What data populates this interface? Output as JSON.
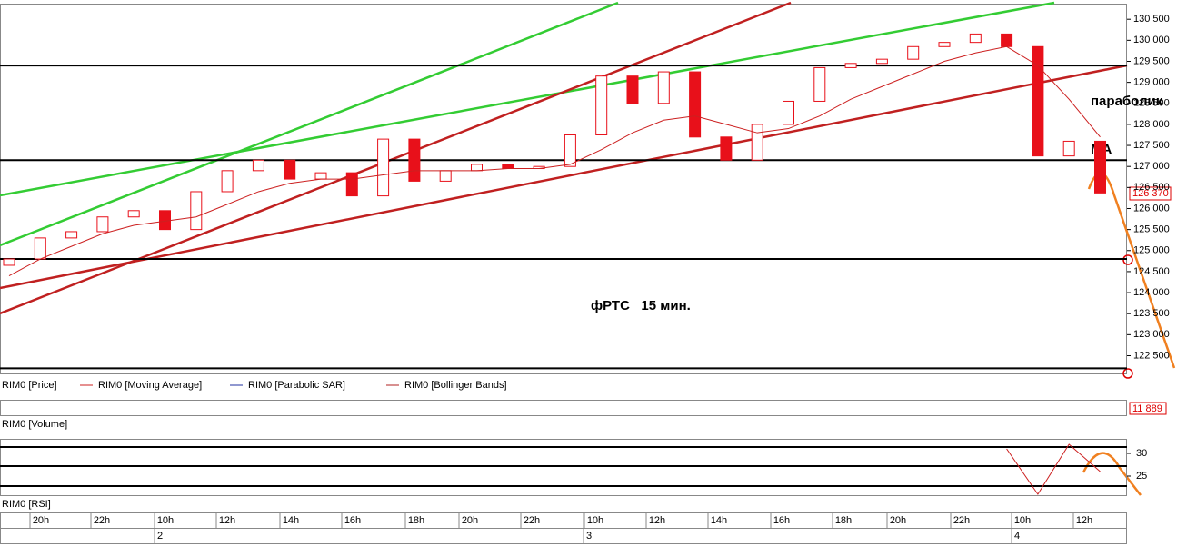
{
  "chart_data": [
    {
      "type": "candlestick",
      "legend": [
        {
          "name": "RIM0 [Price]",
          "color": "#cc2020"
        },
        {
          "name": "RIM0 [Moving Average]",
          "color": "#cc2020"
        },
        {
          "name": "RIM0 [Parabolic SAR]",
          "color": "#2030a0"
        },
        {
          "name": "RIM0 [Bollinger Bands]",
          "color": "#b02020"
        }
      ],
      "open": [
        124650,
        124800,
        125300,
        125450,
        125800,
        125950,
        125500,
        126400,
        126900,
        127150,
        126700,
        126850,
        126300,
        127650,
        126650,
        126900,
        127050,
        126950,
        127000,
        127750,
        129150,
        128500,
        129250,
        127700,
        127150,
        128000,
        128550,
        129350,
        129450,
        129550,
        129850,
        129950,
        130150,
        129850,
        127250,
        127600
      ],
      "close": [
        124800,
        125300,
        125450,
        125800,
        125950,
        125500,
        126400,
        126900,
        127150,
        126700,
        126850,
        126300,
        127650,
        126650,
        126900,
        127050,
        126950,
        127000,
        127750,
        129150,
        128500,
        129250,
        127700,
        127150,
        128000,
        128550,
        129350,
        129450,
        129550,
        129850,
        129950,
        130150,
        129850,
        127250,
        127600,
        126370
      ],
      "up_color": "#ffffff",
      "down_color": "#e8101a",
      "ma": {
        "name": "RIM0 [Moving Average]",
        "color": "#cc2020",
        "values": [
          124400,
          124800,
          125100,
          125400,
          125600,
          125700,
          125800,
          126100,
          126400,
          126600,
          126700,
          126700,
          126800,
          126900,
          126900,
          126900,
          126950,
          126950,
          127050,
          127400,
          127800,
          128100,
          128200,
          128000,
          127800,
          127900,
          128200,
          128600,
          128900,
          129200,
          129500,
          129700,
          129850,
          129400,
          128600,
          127700
        ]
      },
      "levels": [
        129400,
        127150,
        124800,
        122200
      ],
      "ylim": [
        122100,
        130850
      ],
      "yticks": [
        {
          "value": 122500,
          "label": "122 500"
        },
        {
          "value": 123000,
          "label": "123 000"
        },
        {
          "value": 123500,
          "label": "123 500"
        },
        {
          "value": 124000,
          "label": "124 000"
        },
        {
          "value": 124500,
          "label": "124 500"
        },
        {
          "value": 125000,
          "label": "125 000"
        },
        {
          "value": 125500,
          "label": "125 500"
        },
        {
          "value": 126000,
          "label": "126 000"
        },
        {
          "value": 126500,
          "label": "126 500"
        },
        {
          "value": 127000,
          "label": "127 000"
        },
        {
          "value": 127500,
          "label": "127 500"
        },
        {
          "value": 128000,
          "label": "128 000"
        },
        {
          "value": 128500,
          "label": "128 500"
        },
        {
          "value": 129000,
          "label": "129 000"
        },
        {
          "value": 129500,
          "label": "129 500"
        },
        {
          "value": 130000,
          "label": "130 000"
        },
        {
          "value": 130500,
          "label": "130 500"
        }
      ],
      "last_label": "126 370",
      "annotations": [
        "фРТС   15 мин.",
        "параболик",
        "MA"
      ]
    },
    {
      "type": "bar",
      "title": "RIM0 [Volume]",
      "last_label": "11 889"
    },
    {
      "type": "line",
      "title": "RIM0 [RSI]",
      "color": "#cc2020",
      "values": [
        null,
        null,
        null,
        null,
        null,
        null,
        null,
        null,
        null,
        null,
        null,
        null,
        null,
        null,
        null,
        null,
        null,
        null,
        null,
        null,
        null,
        null,
        null,
        null,
        null,
        null,
        null,
        null,
        null,
        null,
        null,
        null,
        31,
        21,
        32,
        26
      ],
      "ylim": [
        20.8,
        32.8
      ],
      "yticks": [
        25,
        30
      ]
    }
  ],
  "time_axis": {
    "categories": [
      "20h",
      "22h",
      "10h",
      "12h",
      "14h",
      "16h",
      "18h",
      "20h",
      "22h",
      "10h",
      "12h",
      "14h",
      "16h",
      "18h",
      "20h",
      "22h",
      "10h",
      "12h"
    ],
    "days": [
      "2",
      "3",
      "4"
    ]
  }
}
